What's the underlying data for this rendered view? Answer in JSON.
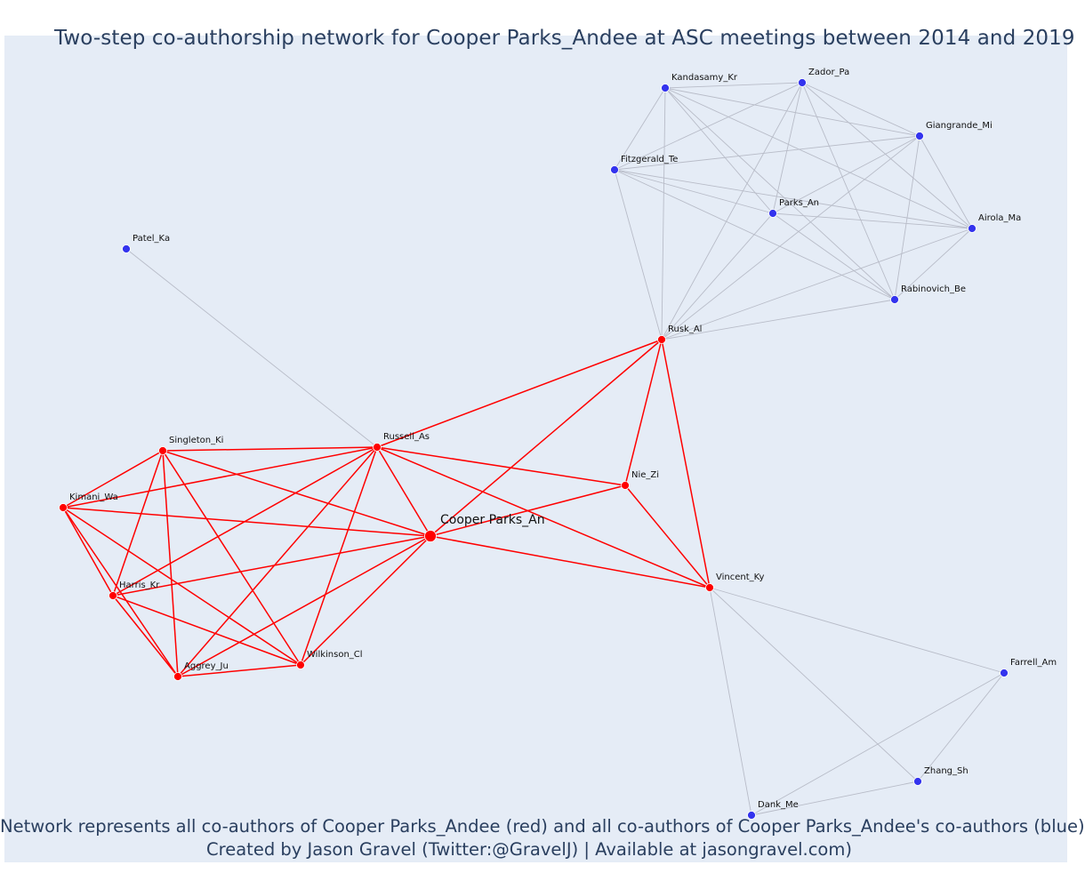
{
  "title": "Two-step co-authorship network for Cooper Parks_Andee at ASC meetings between 2014 and 2019",
  "caption": {
    "line1": "Network represents all co-authors of Cooper Parks_Andee (red) and all co-authors of Cooper Parks_Andee's co-authors (blue)",
    "line2": "Created by Jason Gravel (Twitter:@GravelJ) | Available at jasongravel.com)"
  },
  "colors": {
    "first_degree": "#ff0000",
    "second_degree": "#3333ee",
    "second_degree_edge": "#b8bcc8",
    "background": "#e5ecf6",
    "text": "#2a3f5f"
  },
  "nodes": [
    {
      "id": "cooper",
      "label": "Cooper Parks_An",
      "group": "focal"
    },
    {
      "id": "russell",
      "label": "Russell_As",
      "group": "coauthor"
    },
    {
      "id": "singleton",
      "label": "Singleton_Ki",
      "group": "coauthor"
    },
    {
      "id": "kimani",
      "label": "Kimani_Wa",
      "group": "coauthor"
    },
    {
      "id": "harris",
      "label": "Harris_Kr",
      "group": "coauthor"
    },
    {
      "id": "aggrey",
      "label": "Aggrey_Ju",
      "group": "coauthor"
    },
    {
      "id": "wilkinson",
      "label": "Wilkinson_Cl",
      "group": "coauthor"
    },
    {
      "id": "nie",
      "label": "Nie_Zi",
      "group": "coauthor"
    },
    {
      "id": "rusk",
      "label": "Rusk_Al",
      "group": "coauthor"
    },
    {
      "id": "vincent",
      "label": "Vincent_Ky",
      "group": "coauthor"
    },
    {
      "id": "patel",
      "label": "Patel_Ka",
      "group": "second"
    },
    {
      "id": "kandasamy",
      "label": "Kandasamy_Kr",
      "group": "second"
    },
    {
      "id": "zador",
      "label": "Zador_Pa",
      "group": "second"
    },
    {
      "id": "giangrande",
      "label": "Giangrande_Mi",
      "group": "second"
    },
    {
      "id": "fitzgerald",
      "label": "Fitzgerald_Te",
      "group": "second"
    },
    {
      "id": "parks",
      "label": "Parks_An",
      "group": "second"
    },
    {
      "id": "airola",
      "label": "Airola_Ma",
      "group": "second"
    },
    {
      "id": "rabinovich",
      "label": "Rabinovich_Be",
      "group": "second"
    },
    {
      "id": "farrell",
      "label": "Farrell_Am",
      "group": "second"
    },
    {
      "id": "zhang",
      "label": "Zhang_Sh",
      "group": "second"
    },
    {
      "id": "dank",
      "label": "Dank_Me",
      "group": "second"
    }
  ],
  "edges": [
    {
      "source": "cooper",
      "target": "russell",
      "group": "coauthor"
    },
    {
      "source": "cooper",
      "target": "singleton",
      "group": "coauthor"
    },
    {
      "source": "cooper",
      "target": "kimani",
      "group": "coauthor"
    },
    {
      "source": "cooper",
      "target": "harris",
      "group": "coauthor"
    },
    {
      "source": "cooper",
      "target": "aggrey",
      "group": "coauthor"
    },
    {
      "source": "cooper",
      "target": "wilkinson",
      "group": "coauthor"
    },
    {
      "source": "cooper",
      "target": "nie",
      "group": "coauthor"
    },
    {
      "source": "cooper",
      "target": "rusk",
      "group": "coauthor"
    },
    {
      "source": "cooper",
      "target": "vincent",
      "group": "coauthor"
    },
    {
      "source": "russell",
      "target": "singleton",
      "group": "coauthor"
    },
    {
      "source": "russell",
      "target": "kimani",
      "group": "coauthor"
    },
    {
      "source": "russell",
      "target": "harris",
      "group": "coauthor"
    },
    {
      "source": "russell",
      "target": "aggrey",
      "group": "coauthor"
    },
    {
      "source": "russell",
      "target": "wilkinson",
      "group": "coauthor"
    },
    {
      "source": "russell",
      "target": "nie",
      "group": "coauthor"
    },
    {
      "source": "russell",
      "target": "rusk",
      "group": "coauthor"
    },
    {
      "source": "russell",
      "target": "vincent",
      "group": "coauthor"
    },
    {
      "source": "singleton",
      "target": "harris",
      "group": "coauthor"
    },
    {
      "source": "singleton",
      "target": "aggrey",
      "group": "coauthor"
    },
    {
      "source": "singleton",
      "target": "wilkinson",
      "group": "coauthor"
    },
    {
      "source": "singleton",
      "target": "kimani",
      "group": "coauthor"
    },
    {
      "source": "kimani",
      "target": "harris",
      "group": "coauthor"
    },
    {
      "source": "kimani",
      "target": "aggrey",
      "group": "coauthor"
    },
    {
      "source": "kimani",
      "target": "wilkinson",
      "group": "coauthor"
    },
    {
      "source": "harris",
      "target": "aggrey",
      "group": "coauthor"
    },
    {
      "source": "harris",
      "target": "wilkinson",
      "group": "coauthor"
    },
    {
      "source": "aggrey",
      "target": "wilkinson",
      "group": "coauthor"
    },
    {
      "source": "nie",
      "target": "rusk",
      "group": "coauthor"
    },
    {
      "source": "nie",
      "target": "vincent",
      "group": "coauthor"
    },
    {
      "source": "rusk",
      "target": "vincent",
      "group": "coauthor"
    },
    {
      "source": "russell",
      "target": "patel",
      "group": "second"
    },
    {
      "source": "rusk",
      "target": "kandasamy",
      "group": "second"
    },
    {
      "source": "rusk",
      "target": "zador",
      "group": "second"
    },
    {
      "source": "rusk",
      "target": "giangrande",
      "group": "second"
    },
    {
      "source": "rusk",
      "target": "fitzgerald",
      "group": "second"
    },
    {
      "source": "rusk",
      "target": "parks",
      "group": "second"
    },
    {
      "source": "rusk",
      "target": "airola",
      "group": "second"
    },
    {
      "source": "rusk",
      "target": "rabinovich",
      "group": "second"
    },
    {
      "source": "kandasamy",
      "target": "zador",
      "group": "second"
    },
    {
      "source": "kandasamy",
      "target": "giangrande",
      "group": "second"
    },
    {
      "source": "kandasamy",
      "target": "fitzgerald",
      "group": "second"
    },
    {
      "source": "kandasamy",
      "target": "parks",
      "group": "second"
    },
    {
      "source": "kandasamy",
      "target": "airola",
      "group": "second"
    },
    {
      "source": "kandasamy",
      "target": "rabinovich",
      "group": "second"
    },
    {
      "source": "zador",
      "target": "giangrande",
      "group": "second"
    },
    {
      "source": "zador",
      "target": "fitzgerald",
      "group": "second"
    },
    {
      "source": "zador",
      "target": "parks",
      "group": "second"
    },
    {
      "source": "zador",
      "target": "airola",
      "group": "second"
    },
    {
      "source": "zador",
      "target": "rabinovich",
      "group": "second"
    },
    {
      "source": "giangrande",
      "target": "fitzgerald",
      "group": "second"
    },
    {
      "source": "giangrande",
      "target": "parks",
      "group": "second"
    },
    {
      "source": "giangrande",
      "target": "airola",
      "group": "second"
    },
    {
      "source": "giangrande",
      "target": "rabinovich",
      "group": "second"
    },
    {
      "source": "fitzgerald",
      "target": "parks",
      "group": "second"
    },
    {
      "source": "fitzgerald",
      "target": "airola",
      "group": "second"
    },
    {
      "source": "fitzgerald",
      "target": "rabinovich",
      "group": "second"
    },
    {
      "source": "parks",
      "target": "airola",
      "group": "second"
    },
    {
      "source": "parks",
      "target": "rabinovich",
      "group": "second"
    },
    {
      "source": "airola",
      "target": "rabinovich",
      "group": "second"
    },
    {
      "source": "vincent",
      "target": "farrell",
      "group": "second"
    },
    {
      "source": "vincent",
      "target": "zhang",
      "group": "second"
    },
    {
      "source": "vincent",
      "target": "dank",
      "group": "second"
    },
    {
      "source": "farrell",
      "target": "zhang",
      "group": "second"
    },
    {
      "source": "farrell",
      "target": "dank",
      "group": "second"
    },
    {
      "source": "zhang",
      "target": "dank",
      "group": "second"
    }
  ]
}
